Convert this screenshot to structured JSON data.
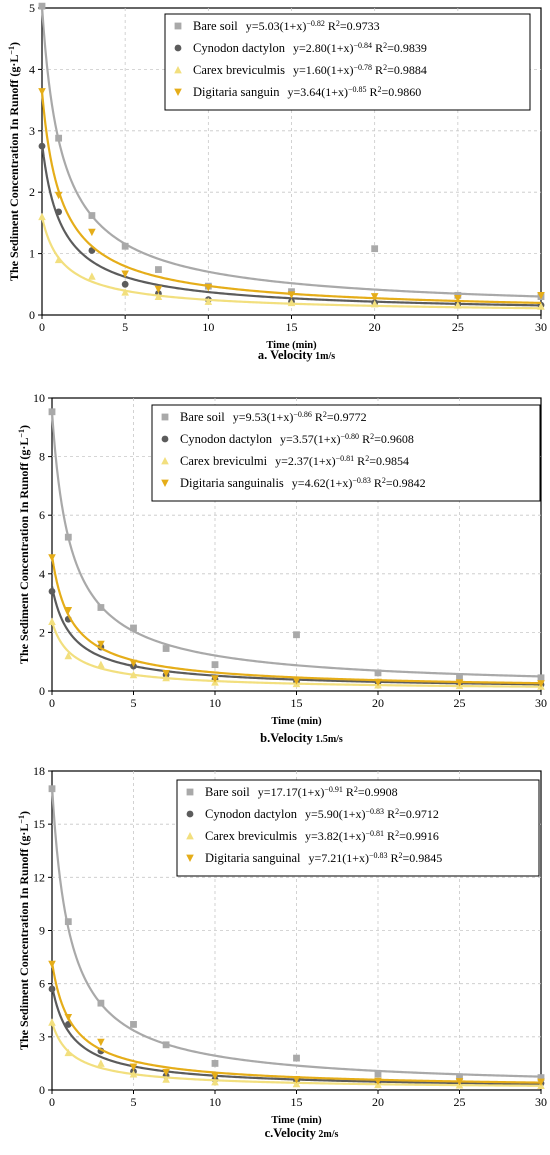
{
  "figure": {
    "ylabel_main": "The Sediment Concentration In Runoff ",
    "ylabel_unit_a": "(g·L",
    "ylabel_unit_sup": "−1",
    "ylabel_unit_b": ")",
    "xlabel": "Time (min)"
  },
  "series_style": {
    "Bare soil": {
      "color": "#a9a9a9",
      "marker": "square"
    },
    "Cynodon dactylon": {
      "color": "#5c5c5c",
      "marker": "circle"
    },
    "Carex breviculmis": {
      "color": "#f2df7e",
      "marker": "triangle-up"
    },
    "Digitaria sanguinalis": {
      "color": "#e5ad19",
      "marker": "triangle-down"
    }
  },
  "chart_data": [
    {
      "type": "scatter",
      "caption": "a. Velocity",
      "caption_sub": "1m/s",
      "xlim": [
        0,
        30
      ],
      "ylim": [
        0,
        5
      ],
      "xticks": [
        0,
        5,
        10,
        15,
        20,
        25,
        30
      ],
      "yticks": [
        0,
        1,
        2,
        3,
        4,
        5
      ],
      "x": [
        0,
        1,
        3,
        5,
        7,
        10,
        15,
        20,
        25,
        30
      ],
      "series": [
        {
          "legend": "Bare soil",
          "eq_a": "y=5.03(1+x)",
          "eq_exp": "−0.82",
          "eq_r2": "=0.9733",
          "fit": {
            "a": 5.03,
            "b": -0.82
          },
          "values": [
            5.03,
            2.88,
            1.62,
            1.12,
            0.74,
            0.47,
            0.38,
            1.08,
            0.32,
            0.3
          ]
        },
        {
          "legend": "Cynodon dactylon",
          "eq_a": "y=2.80(1+x)",
          "eq_exp": "−0.84",
          "eq_r2": "=0.9839",
          "fit": {
            "a": 2.8,
            "b": -0.84
          },
          "values": [
            2.75,
            1.68,
            1.05,
            0.5,
            0.35,
            0.25,
            0.22,
            0.2,
            0.18,
            0.16
          ]
        },
        {
          "legend": "Carex breviculmis",
          "eq_a": "y=1.60(1+x)",
          "eq_exp": "−0.78",
          "eq_r2": "=0.9884",
          "fit": {
            "a": 1.6,
            "b": -0.78
          },
          "values": [
            1.6,
            0.9,
            0.63,
            0.37,
            0.3,
            0.22,
            0.2,
            0.18,
            0.16,
            0.14
          ]
        },
        {
          "legend": "Digitaria sanguin",
          "eq_a": "y=3.64(1+x)",
          "eq_exp": "−0.85",
          "eq_r2": "=0.9860",
          "fit": {
            "a": 3.64,
            "b": -0.85
          },
          "values": [
            3.64,
            1.95,
            1.35,
            0.67,
            0.42,
            0.45,
            0.33,
            0.3,
            0.27,
            0.32
          ]
        }
      ]
    },
    {
      "type": "scatter",
      "caption": "b.Velocity",
      "caption_sub": "1.5m/s",
      "xlim": [
        0,
        30
      ],
      "ylim": [
        0,
        10
      ],
      "xticks": [
        0,
        5,
        10,
        15,
        20,
        25,
        30
      ],
      "yticks": [
        0,
        2,
        4,
        6,
        8,
        10
      ],
      "x": [
        0,
        1,
        3,
        5,
        7,
        10,
        15,
        20,
        25,
        30
      ],
      "series": [
        {
          "legend": "Bare soil",
          "eq_a": "y=9.53(1+x)",
          "eq_exp": "−0.86",
          "eq_r2": "=0.9772",
          "fit": {
            "a": 9.53,
            "b": -0.86
          },
          "values": [
            9.53,
            5.25,
            2.85,
            2.15,
            1.45,
            0.9,
            1.92,
            0.62,
            0.45,
            0.45
          ]
        },
        {
          "legend": "Cynodon dactylon",
          "eq_a": "y=3.57(1+x)",
          "eq_exp": "−0.80",
          "eq_r2": "=0.9608",
          "fit": {
            "a": 3.57,
            "b": -0.8
          },
          "values": [
            3.4,
            2.45,
            1.5,
            0.85,
            0.55,
            0.4,
            0.3,
            0.3,
            0.25,
            0.22
          ]
        },
        {
          "legend": "Carex breviculmi",
          "eq_a": "y=2.37(1+x)",
          "eq_exp": "−0.81",
          "eq_r2": "=0.9854",
          "fit": {
            "a": 2.37,
            "b": -0.81
          },
          "values": [
            2.37,
            1.2,
            0.9,
            0.55,
            0.45,
            0.3,
            0.25,
            0.2,
            0.18,
            0.16
          ]
        },
        {
          "legend": "Digitaria sanguinalis",
          "eq_a": "y=4.62(1+x)",
          "eq_exp": "−0.83",
          "eq_r2": "=0.9842",
          "fit": {
            "a": 4.62,
            "b": -0.83
          },
          "values": [
            4.55,
            2.75,
            1.6,
            0.95,
            0.6,
            0.42,
            0.35,
            0.3,
            0.28,
            0.25
          ]
        }
      ]
    },
    {
      "type": "scatter",
      "caption": "c.Velocity",
      "caption_sub": "2m/s",
      "xlim": [
        0,
        30
      ],
      "ylim": [
        0,
        18
      ],
      "xticks": [
        0,
        5,
        10,
        15,
        20,
        25,
        30
      ],
      "yticks": [
        0,
        3,
        6,
        9,
        12,
        15,
        18
      ],
      "x": [
        0,
        1,
        3,
        5,
        7,
        10,
        15,
        20,
        25,
        30
      ],
      "series": [
        {
          "legend": "Bare soil",
          "eq_a": "y=17.17(1+x)",
          "eq_exp": "−0.91",
          "eq_r2": "=0.9908",
          "fit": {
            "a": 17.17,
            "b": -0.91
          },
          "values": [
            17.0,
            9.5,
            4.9,
            3.7,
            2.55,
            1.5,
            1.8,
            0.9,
            0.75,
            0.7
          ]
        },
        {
          "legend": "Cynodon dactylon",
          "eq_a": "y=5.90(1+x)",
          "eq_exp": "−0.83",
          "eq_r2": "=0.9712",
          "fit": {
            "a": 5.9,
            "b": -0.83
          },
          "values": [
            5.7,
            3.7,
            2.2,
            1.05,
            0.8,
            0.6,
            0.5,
            0.45,
            0.4,
            0.38
          ]
        },
        {
          "legend": "Carex breviculmis",
          "eq_a": "y=3.82(1+x)",
          "eq_exp": "−0.81",
          "eq_r2": "=0.9916",
          "fit": {
            "a": 3.82,
            "b": -0.81
          },
          "values": [
            3.82,
            2.1,
            1.5,
            0.9,
            0.6,
            0.45,
            0.35,
            0.3,
            0.28,
            0.25
          ]
        },
        {
          "legend": "Digitaria sanguinal",
          "eq_a": "y=7.21(1+x)",
          "eq_exp": "−0.83",
          "eq_r2": "=0.9845",
          "fit": {
            "a": 7.21,
            "b": -0.83
          },
          "values": [
            7.1,
            4.1,
            2.7,
            1.3,
            1.0,
            0.8,
            0.6,
            0.5,
            0.48,
            0.45
          ]
        }
      ]
    }
  ]
}
